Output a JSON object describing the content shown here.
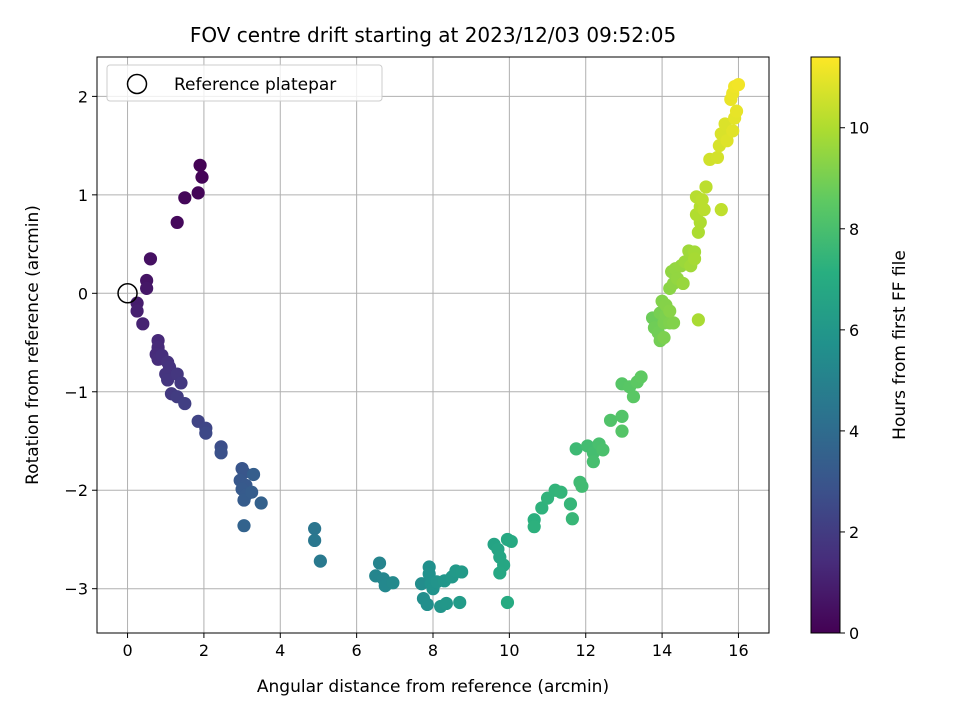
{
  "chart_data": {
    "type": "scatter",
    "title": "FOV centre drift starting at 2023/12/03 09:52:05",
    "xlabel": "Angular distance from reference (arcmin)",
    "ylabel": "Rotation from reference (arcmin)",
    "xlim": [
      -0.8,
      16.8
    ],
    "ylim": [
      -3.45,
      2.4
    ],
    "xticks": [
      0,
      2,
      4,
      6,
      8,
      10,
      12,
      14,
      16
    ],
    "yticks": [
      -3,
      -2,
      -1,
      0,
      1,
      2
    ],
    "grid": true,
    "legend": {
      "placement": "top-left",
      "entries": [
        "Reference platepar"
      ]
    },
    "reference_point": {
      "x": 0,
      "y": 0
    },
    "colorbar": {
      "label": "Hours from first FF file",
      "range": [
        0,
        11.4
      ],
      "ticks": [
        0,
        2,
        4,
        6,
        8,
        10
      ],
      "colormap": "viridis"
    },
    "points": [
      {
        "x": 1.9,
        "y": 1.3,
        "c": 0.05
      },
      {
        "x": 1.95,
        "y": 1.18,
        "c": 0.1
      },
      {
        "x": 1.85,
        "y": 1.02,
        "c": 0.15
      },
      {
        "x": 1.5,
        "y": 0.97,
        "c": 0.2
      },
      {
        "x": 1.3,
        "y": 0.72,
        "c": 0.25
      },
      {
        "x": 0.6,
        "y": 0.35,
        "c": 0.5
      },
      {
        "x": 0.5,
        "y": 0.13,
        "c": 0.6
      },
      {
        "x": 0.5,
        "y": 0.05,
        "c": 0.7
      },
      {
        "x": 0.25,
        "y": -0.1,
        "c": 0.9
      },
      {
        "x": 0.25,
        "y": -0.18,
        "c": 1.0
      },
      {
        "x": 0.4,
        "y": -0.31,
        "c": 1.1
      },
      {
        "x": 0.8,
        "y": -0.48,
        "c": 1.3
      },
      {
        "x": 0.8,
        "y": -0.55,
        "c": 1.35
      },
      {
        "x": 0.75,
        "y": -0.62,
        "c": 1.4
      },
      {
        "x": 0.8,
        "y": -0.67,
        "c": 1.45
      },
      {
        "x": 0.9,
        "y": -0.63,
        "c": 1.5
      },
      {
        "x": 1.05,
        "y": -0.7,
        "c": 1.6
      },
      {
        "x": 1.1,
        "y": -0.75,
        "c": 1.65
      },
      {
        "x": 1.0,
        "y": -0.82,
        "c": 1.7
      },
      {
        "x": 1.05,
        "y": -0.88,
        "c": 1.75
      },
      {
        "x": 1.3,
        "y": -0.82,
        "c": 1.8
      },
      {
        "x": 1.4,
        "y": -0.91,
        "c": 1.85
      },
      {
        "x": 1.15,
        "y": -1.02,
        "c": 1.9
      },
      {
        "x": 1.3,
        "y": -1.05,
        "c": 2.0
      },
      {
        "x": 1.5,
        "y": -1.12,
        "c": 2.1
      },
      {
        "x": 1.85,
        "y": -1.3,
        "c": 2.3
      },
      {
        "x": 2.05,
        "y": -1.37,
        "c": 2.4
      },
      {
        "x": 2.05,
        "y": -1.42,
        "c": 2.5
      },
      {
        "x": 2.45,
        "y": -1.56,
        "c": 2.7
      },
      {
        "x": 2.45,
        "y": -1.62,
        "c": 2.8
      },
      {
        "x": 3.0,
        "y": -1.78,
        "c": 3.0
      },
      {
        "x": 3.05,
        "y": -1.82,
        "c": 3.05
      },
      {
        "x": 2.95,
        "y": -1.9,
        "c": 3.1
      },
      {
        "x": 3.1,
        "y": -1.95,
        "c": 3.15
      },
      {
        "x": 3.0,
        "y": -1.99,
        "c": 3.2
      },
      {
        "x": 3.1,
        "y": -2.05,
        "c": 3.25
      },
      {
        "x": 3.05,
        "y": -2.1,
        "c": 3.3
      },
      {
        "x": 3.25,
        "y": -2.02,
        "c": 3.35
      },
      {
        "x": 3.3,
        "y": -1.84,
        "c": 3.4
      },
      {
        "x": 3.5,
        "y": -2.13,
        "c": 3.5
      },
      {
        "x": 3.05,
        "y": -2.36,
        "c": 3.6
      },
      {
        "x": 4.9,
        "y": -2.39,
        "c": 4.4
      },
      {
        "x": 4.9,
        "y": -2.51,
        "c": 4.5
      },
      {
        "x": 5.05,
        "y": -2.72,
        "c": 4.6
      },
      {
        "x": 6.6,
        "y": -2.74,
        "c": 5.1
      },
      {
        "x": 6.5,
        "y": -2.87,
        "c": 5.15
      },
      {
        "x": 6.7,
        "y": -2.9,
        "c": 5.2
      },
      {
        "x": 6.75,
        "y": -2.97,
        "c": 5.3
      },
      {
        "x": 6.95,
        "y": -2.94,
        "c": 5.35
      },
      {
        "x": 7.7,
        "y": -2.95,
        "c": 5.5
      },
      {
        "x": 7.75,
        "y": -3.1,
        "c": 5.55
      },
      {
        "x": 7.85,
        "y": -3.16,
        "c": 5.6
      },
      {
        "x": 7.9,
        "y": -2.78,
        "c": 5.65
      },
      {
        "x": 7.9,
        "y": -2.85,
        "c": 5.7
      },
      {
        "x": 7.95,
        "y": -2.95,
        "c": 5.75
      },
      {
        "x": 8.0,
        "y": -3.0,
        "c": 5.8
      },
      {
        "x": 8.1,
        "y": -2.93,
        "c": 5.85
      },
      {
        "x": 8.2,
        "y": -3.18,
        "c": 5.9
      },
      {
        "x": 8.3,
        "y": -2.92,
        "c": 5.95
      },
      {
        "x": 8.35,
        "y": -3.15,
        "c": 6.0
      },
      {
        "x": 8.5,
        "y": -2.88,
        "c": 6.05
      },
      {
        "x": 8.6,
        "y": -2.82,
        "c": 6.1
      },
      {
        "x": 8.75,
        "y": -2.83,
        "c": 6.15
      },
      {
        "x": 8.7,
        "y": -3.14,
        "c": 6.2
      },
      {
        "x": 9.6,
        "y": -2.55,
        "c": 6.6
      },
      {
        "x": 9.7,
        "y": -2.6,
        "c": 6.65
      },
      {
        "x": 9.75,
        "y": -2.68,
        "c": 6.7
      },
      {
        "x": 9.85,
        "y": -2.76,
        "c": 6.75
      },
      {
        "x": 9.75,
        "y": -2.84,
        "c": 6.8
      },
      {
        "x": 9.95,
        "y": -2.5,
        "c": 6.85
      },
      {
        "x": 10.05,
        "y": -2.52,
        "c": 6.9
      },
      {
        "x": 9.95,
        "y": -3.14,
        "c": 6.95
      },
      {
        "x": 10.65,
        "y": -2.3,
        "c": 7.2
      },
      {
        "x": 10.65,
        "y": -2.37,
        "c": 7.25
      },
      {
        "x": 10.85,
        "y": -2.18,
        "c": 7.3
      },
      {
        "x": 11.0,
        "y": -2.08,
        "c": 7.35
      },
      {
        "x": 11.2,
        "y": -2.0,
        "c": 7.4
      },
      {
        "x": 11.35,
        "y": -2.02,
        "c": 7.45
      },
      {
        "x": 11.6,
        "y": -2.14,
        "c": 7.5
      },
      {
        "x": 11.65,
        "y": -2.29,
        "c": 7.55
      },
      {
        "x": 11.75,
        "y": -1.58,
        "c": 7.7
      },
      {
        "x": 11.85,
        "y": -1.92,
        "c": 7.75
      },
      {
        "x": 11.9,
        "y": -1.96,
        "c": 7.8
      },
      {
        "x": 12.05,
        "y": -1.55,
        "c": 7.85
      },
      {
        "x": 12.2,
        "y": -1.62,
        "c": 7.9
      },
      {
        "x": 12.2,
        "y": -1.71,
        "c": 7.95
      },
      {
        "x": 12.35,
        "y": -1.53,
        "c": 8.0
      },
      {
        "x": 12.45,
        "y": -1.59,
        "c": 8.05
      },
      {
        "x": 12.65,
        "y": -1.29,
        "c": 8.2
      },
      {
        "x": 12.95,
        "y": -1.25,
        "c": 8.25
      },
      {
        "x": 12.95,
        "y": -1.4,
        "c": 8.3
      },
      {
        "x": 12.95,
        "y": -0.92,
        "c": 8.35
      },
      {
        "x": 13.15,
        "y": -0.95,
        "c": 8.4
      },
      {
        "x": 13.25,
        "y": -1.05,
        "c": 8.45
      },
      {
        "x": 13.35,
        "y": -0.9,
        "c": 8.5
      },
      {
        "x": 13.45,
        "y": -0.85,
        "c": 8.55
      },
      {
        "x": 13.75,
        "y": -0.25,
        "c": 8.8
      },
      {
        "x": 13.8,
        "y": -0.35,
        "c": 8.85
      },
      {
        "x": 13.9,
        "y": -0.4,
        "c": 8.9
      },
      {
        "x": 13.95,
        "y": -0.48,
        "c": 8.95
      },
      {
        "x": 13.95,
        "y": -0.2,
        "c": 9.0
      },
      {
        "x": 14.05,
        "y": -0.3,
        "c": 9.05
      },
      {
        "x": 14.05,
        "y": -0.45,
        "c": 9.1
      },
      {
        "x": 14.1,
        "y": -0.22,
        "c": 9.1
      },
      {
        "x": 14.2,
        "y": -0.3,
        "c": 9.15
      },
      {
        "x": 14.3,
        "y": -0.3,
        "c": 9.2
      },
      {
        "x": 14.0,
        "y": -0.08,
        "c": 9.2
      },
      {
        "x": 14.1,
        "y": -0.12,
        "c": 9.25
      },
      {
        "x": 14.2,
        "y": -0.18,
        "c": 9.3
      },
      {
        "x": 14.2,
        "y": 0.05,
        "c": 9.35
      },
      {
        "x": 14.3,
        "y": 0.1,
        "c": 9.4
      },
      {
        "x": 14.25,
        "y": 0.22,
        "c": 9.45
      },
      {
        "x": 14.35,
        "y": 0.25,
        "c": 9.5
      },
      {
        "x": 14.4,
        "y": 0.15,
        "c": 9.5
      },
      {
        "x": 14.5,
        "y": 0.28,
        "c": 9.55
      },
      {
        "x": 14.55,
        "y": 0.1,
        "c": 9.6
      },
      {
        "x": 14.6,
        "y": 0.32,
        "c": 9.65
      },
      {
        "x": 14.7,
        "y": 0.43,
        "c": 9.7
      },
      {
        "x": 14.75,
        "y": 0.28,
        "c": 9.75
      },
      {
        "x": 14.85,
        "y": 0.42,
        "c": 9.8
      },
      {
        "x": 14.85,
        "y": 0.35,
        "c": 9.85
      },
      {
        "x": 14.95,
        "y": -0.27,
        "c": 9.9
      },
      {
        "x": 14.95,
        "y": 0.62,
        "c": 9.95
      },
      {
        "x": 15.0,
        "y": 0.72,
        "c": 10.0
      },
      {
        "x": 14.9,
        "y": 0.8,
        "c": 10.05
      },
      {
        "x": 15.0,
        "y": 0.88,
        "c": 10.1
      },
      {
        "x": 14.9,
        "y": 0.98,
        "c": 10.15
      },
      {
        "x": 15.1,
        "y": 0.85,
        "c": 10.2
      },
      {
        "x": 15.05,
        "y": 0.95,
        "c": 10.2
      },
      {
        "x": 15.15,
        "y": 1.08,
        "c": 10.25
      },
      {
        "x": 15.55,
        "y": 0.85,
        "c": 10.3
      },
      {
        "x": 15.25,
        "y": 1.36,
        "c": 10.6
      },
      {
        "x": 15.45,
        "y": 1.38,
        "c": 10.65
      },
      {
        "x": 15.5,
        "y": 1.5,
        "c": 10.7
      },
      {
        "x": 15.55,
        "y": 1.62,
        "c": 10.75
      },
      {
        "x": 15.65,
        "y": 1.72,
        "c": 10.8
      },
      {
        "x": 15.7,
        "y": 1.55,
        "c": 10.85
      },
      {
        "x": 15.85,
        "y": 1.65,
        "c": 10.9
      },
      {
        "x": 15.9,
        "y": 1.78,
        "c": 10.95
      },
      {
        "x": 15.95,
        "y": 1.85,
        "c": 11.0
      },
      {
        "x": 15.8,
        "y": 1.97,
        "c": 11.05
      },
      {
        "x": 15.85,
        "y": 2.03,
        "c": 11.1
      },
      {
        "x": 15.9,
        "y": 2.1,
        "c": 11.15
      },
      {
        "x": 16.0,
        "y": 2.12,
        "c": 11.2
      }
    ]
  }
}
